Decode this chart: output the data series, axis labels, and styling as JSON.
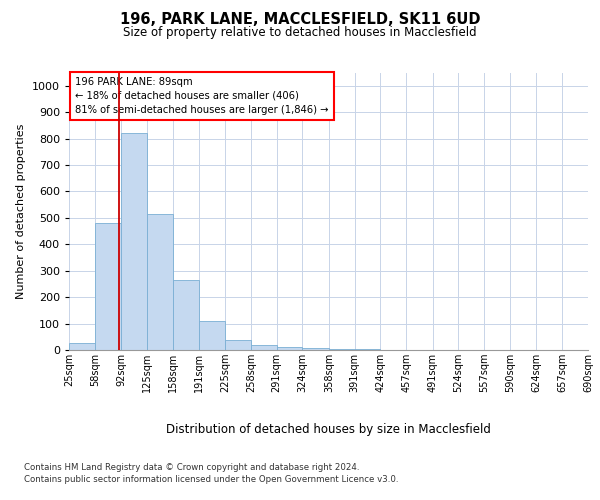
{
  "title1": "196, PARK LANE, MACCLESFIELD, SK11 6UD",
  "title2": "Size of property relative to detached houses in Macclesfield",
  "xlabel": "Distribution of detached houses by size in Macclesfield",
  "ylabel": "Number of detached properties",
  "footnote1": "Contains HM Land Registry data © Crown copyright and database right 2024.",
  "footnote2": "Contains public sector information licensed under the Open Government Licence v3.0.",
  "annotation_line1": "196 PARK LANE: 89sqm",
  "annotation_line2": "← 18% of detached houses are smaller (406)",
  "annotation_line3": "81% of semi-detached houses are larger (1,846) →",
  "bar_color": "#c5d9f0",
  "bar_edge_color": "#7aafd4",
  "redline_color": "#cc0000",
  "redline_x": 89,
  "bins": [
    25,
    58,
    92,
    125,
    158,
    191,
    225,
    258,
    291,
    324,
    358,
    391,
    424,
    457,
    491,
    524,
    557,
    590,
    624,
    657,
    690
  ],
  "bin_labels": [
    "25sqm",
    "58sqm",
    "92sqm",
    "125sqm",
    "158sqm",
    "191sqm",
    "225sqm",
    "258sqm",
    "291sqm",
    "324sqm",
    "358sqm",
    "391sqm",
    "424sqm",
    "457sqm",
    "491sqm",
    "524sqm",
    "557sqm",
    "590sqm",
    "624sqm",
    "657sqm",
    "690sqm"
  ],
  "values": [
    25,
    480,
    820,
    515,
    265,
    110,
    38,
    20,
    10,
    8,
    3,
    2,
    1,
    0,
    0,
    0,
    0,
    0,
    0,
    0
  ],
  "ylim": [
    0,
    1050
  ],
  "yticks": [
    0,
    100,
    200,
    300,
    400,
    500,
    600,
    700,
    800,
    900,
    1000
  ],
  "background_color": "#ffffff",
  "grid_color": "#c8d4e8",
  "fig_width": 6.0,
  "fig_height": 5.0,
  "dpi": 100
}
